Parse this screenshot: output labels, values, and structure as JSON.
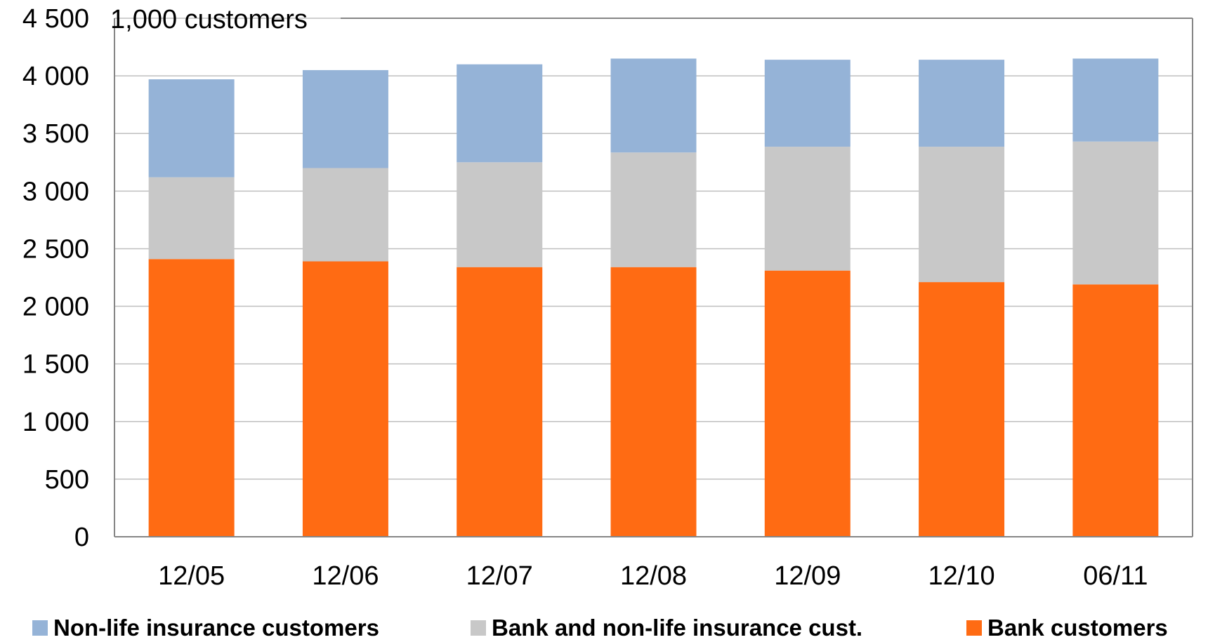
{
  "chart_data": {
    "type": "bar",
    "stacked": true,
    "unit_label": "1,000 customers",
    "categories": [
      "12/05",
      "12/06",
      "12/07",
      "12/08",
      "12/09",
      "12/10",
      "06/11"
    ],
    "series": [
      {
        "name": "Bank customers",
        "color": "#FF6B13",
        "values": [
          2410,
          2390,
          2340,
          2340,
          2310,
          2210,
          2190
        ]
      },
      {
        "name": "Bank and non-life insurance cust.",
        "color": "#C8C8C8",
        "values": [
          710,
          810,
          910,
          995,
          1075,
          1175,
          1240
        ]
      },
      {
        "name": "Non-life insurance customers",
        "color": "#95B3D7",
        "values": [
          850,
          850,
          850,
          815,
          755,
          755,
          720
        ]
      }
    ],
    "legend_order": [
      "Non-life insurance customers",
      "Bank and non-life insurance cust.",
      "Bank customers"
    ],
    "ylim": [
      0,
      4500
    ],
    "yticks": [
      0,
      500,
      1000,
      1500,
      2000,
      2500,
      3000,
      3500,
      4000,
      4500
    ],
    "ytick_labels": [
      "0",
      "500",
      "1 000",
      "1 500",
      "2 000",
      "2 500",
      "3 000",
      "3 500",
      "4 000",
      "4 500"
    ],
    "grid": true,
    "legend_position": "bottom"
  }
}
